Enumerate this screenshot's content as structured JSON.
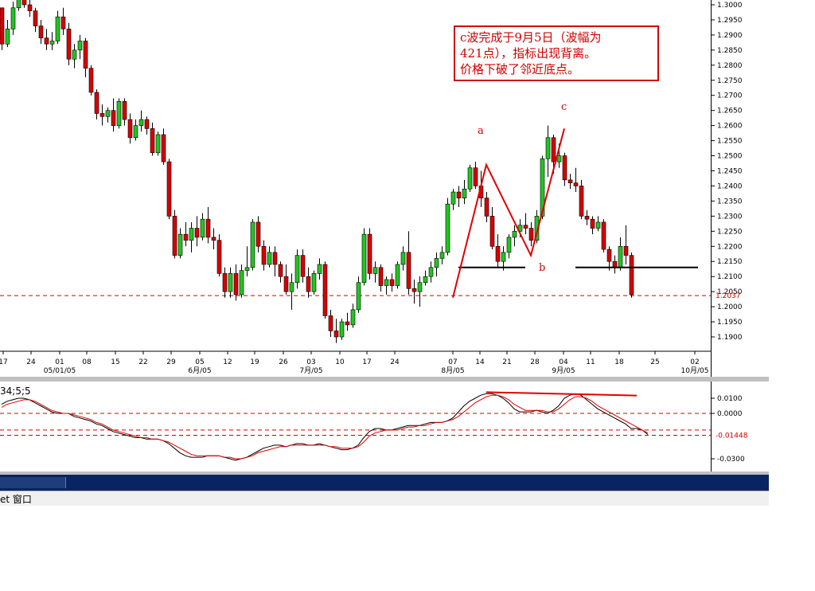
{
  "chart_data": [
    {
      "type": "candlestick",
      "title": "",
      "y_axis_side": "right",
      "ylim": [
        1.186,
        1.3015
      ],
      "y_ticks": [
        "1.3000",
        "1.2950",
        "1.2900",
        "1.2850",
        "1.2800",
        "1.2750",
        "1.2700",
        "1.2650",
        "1.2600",
        "1.2550",
        "1.2500",
        "1.2450",
        "1.2400",
        "1.2350",
        "1.2300",
        "1.2250",
        "1.2200",
        "1.2150",
        "1.2100",
        "1.2050",
        "1.2000",
        "1.1950",
        "1.1900"
      ],
      "current_price_label": "1.2037",
      "current_price": 1.2037,
      "x_day_ticks": [
        "17",
        "24",
        "01",
        "08",
        "15",
        "22",
        "29",
        "05",
        "12",
        "19",
        "26",
        "03",
        "10",
        "17",
        "24",
        "07",
        "14",
        "21",
        "28",
        "04",
        "11",
        "18",
        "25",
        "02"
      ],
      "x_month_ticks": [
        "05/01/05",
        "6月/05",
        "7月/05",
        "8月/05",
        "9月/05",
        "10月/05"
      ],
      "colors": {
        "up": "#22c522",
        "down": "#d80000",
        "grid_dash": "#d00000",
        "wave_line": "#e00000",
        "support_line": "#000000"
      },
      "candles": [
        [
          1.299,
          1.299,
          1.285,
          1.287
        ],
        [
          1.287,
          1.295,
          1.286,
          1.292
        ],
        [
          1.292,
          1.301,
          1.29,
          1.299
        ],
        [
          1.299,
          1.304,
          1.298,
          1.303
        ],
        [
          1.303,
          1.305,
          1.299,
          1.3
        ],
        [
          1.3,
          1.302,
          1.296,
          1.298
        ],
        [
          1.298,
          1.299,
          1.291,
          1.293
        ],
        [
          1.293,
          1.295,
          1.287,
          1.289
        ],
        [
          1.289,
          1.292,
          1.285,
          1.287
        ],
        [
          1.287,
          1.291,
          1.285,
          1.288
        ],
        [
          1.288,
          1.298,
          1.287,
          1.296
        ],
        [
          1.296,
          1.299,
          1.29,
          1.292
        ],
        [
          1.292,
          1.294,
          1.28,
          1.282
        ],
        [
          1.282,
          1.287,
          1.279,
          1.285
        ],
        [
          1.285,
          1.29,
          1.282,
          1.288
        ],
        [
          1.288,
          1.289,
          1.276,
          1.279
        ],
        [
          1.279,
          1.28,
          1.27,
          1.271
        ],
        [
          1.271,
          1.272,
          1.262,
          1.264
        ],
        [
          1.264,
          1.267,
          1.26,
          1.263
        ],
        [
          1.263,
          1.266,
          1.261,
          1.265
        ],
        [
          1.265,
          1.269,
          1.258,
          1.26
        ],
        [
          1.26,
          1.269,
          1.259,
          1.268
        ],
        [
          1.268,
          1.269,
          1.26,
          1.262
        ],
        [
          1.262,
          1.264,
          1.254,
          1.256
        ],
        [
          1.256,
          1.262,
          1.255,
          1.26
        ],
        [
          1.26,
          1.265,
          1.258,
          1.262
        ],
        [
          1.262,
          1.263,
          1.257,
          1.259
        ],
        [
          1.259,
          1.261,
          1.25,
          1.251
        ],
        [
          1.251,
          1.258,
          1.25,
          1.257
        ],
        [
          1.257,
          1.259,
          1.247,
          1.248
        ],
        [
          1.248,
          1.249,
          1.229,
          1.23
        ],
        [
          1.23,
          1.232,
          1.216,
          1.217
        ],
        [
          1.217,
          1.226,
          1.216,
          1.224
        ],
        [
          1.224,
          1.228,
          1.22,
          1.222
        ],
        [
          1.222,
          1.228,
          1.218,
          1.226
        ],
        [
          1.226,
          1.23,
          1.22,
          1.223
        ],
        [
          1.223,
          1.231,
          1.222,
          1.229
        ],
        [
          1.229,
          1.233,
          1.221,
          1.223
        ],
        [
          1.223,
          1.226,
          1.219,
          1.222
        ],
        [
          1.222,
          1.224,
          1.21,
          1.211
        ],
        [
          1.211,
          1.213,
          1.203,
          1.205
        ],
        [
          1.205,
          1.213,
          1.203,
          1.211
        ],
        [
          1.211,
          1.214,
          1.202,
          1.204
        ],
        [
          1.204,
          1.214,
          1.203,
          1.212
        ],
        [
          1.212,
          1.22,
          1.21,
          1.213
        ],
        [
          1.213,
          1.229,
          1.212,
          1.228
        ],
        [
          1.228,
          1.23,
          1.218,
          1.22
        ],
        [
          1.22,
          1.222,
          1.212,
          1.214
        ],
        [
          1.214,
          1.22,
          1.213,
          1.218
        ],
        [
          1.218,
          1.22,
          1.21,
          1.214
        ],
        [
          1.214,
          1.215,
          1.208,
          1.21
        ],
        [
          1.21,
          1.214,
          1.204,
          1.205
        ],
        [
          1.205,
          1.211,
          1.199,
          1.208
        ],
        [
          1.208,
          1.219,
          1.206,
          1.217
        ],
        [
          1.217,
          1.219,
          1.208,
          1.21
        ],
        [
          1.21,
          1.213,
          1.203,
          1.205
        ],
        [
          1.205,
          1.212,
          1.204,
          1.211
        ],
        [
          1.211,
          1.216,
          1.209,
          1.214
        ],
        [
          1.214,
          1.215,
          1.196,
          1.197
        ],
        [
          1.197,
          1.199,
          1.19,
          1.192
        ],
        [
          1.192,
          1.196,
          1.188,
          1.19
        ],
        [
          1.19,
          1.196,
          1.189,
          1.195
        ],
        [
          1.195,
          1.198,
          1.192,
          1.194
        ],
        [
          1.194,
          1.201,
          1.193,
          1.199
        ],
        [
          1.199,
          1.21,
          1.198,
          1.208
        ],
        [
          1.208,
          1.226,
          1.207,
          1.224
        ],
        [
          1.224,
          1.226,
          1.209,
          1.211
        ],
        [
          1.211,
          1.215,
          1.208,
          1.213
        ],
        [
          1.213,
          1.214,
          1.205,
          1.207
        ],
        [
          1.207,
          1.21,
          1.204,
          1.209
        ],
        [
          1.209,
          1.211,
          1.205,
          1.207
        ],
        [
          1.207,
          1.215,
          1.206,
          1.214
        ],
        [
          1.214,
          1.22,
          1.212,
          1.218
        ],
        [
          1.218,
          1.225,
          1.204,
          1.206
        ],
        [
          1.206,
          1.209,
          1.201,
          1.205
        ],
        [
          1.205,
          1.21,
          1.2,
          1.208
        ],
        [
          1.208,
          1.212,
          1.207,
          1.21
        ],
        [
          1.21,
          1.215,
          1.208,
          1.213
        ],
        [
          1.213,
          1.218,
          1.21,
          1.216
        ],
        [
          1.216,
          1.22,
          1.214,
          1.218
        ],
        [
          1.218,
          1.236,
          1.217,
          1.234
        ],
        [
          1.234,
          1.239,
          1.232,
          1.238
        ],
        [
          1.238,
          1.24,
          1.233,
          1.236
        ],
        [
          1.236,
          1.242,
          1.234,
          1.239
        ],
        [
          1.239,
          1.247,
          1.238,
          1.246
        ],
        [
          1.246,
          1.248,
          1.239,
          1.24
        ],
        [
          1.24,
          1.245,
          1.233,
          1.236
        ],
        [
          1.236,
          1.238,
          1.228,
          1.23
        ],
        [
          1.23,
          1.233,
          1.219,
          1.22
        ],
        [
          1.22,
          1.224,
          1.213,
          1.215
        ],
        [
          1.215,
          1.22,
          1.212,
          1.218
        ],
        [
          1.218,
          1.224,
          1.216,
          1.223
        ],
        [
          1.223,
          1.227,
          1.22,
          1.225
        ],
        [
          1.225,
          1.229,
          1.223,
          1.227
        ],
        [
          1.227,
          1.231,
          1.224,
          1.226
        ],
        [
          1.226,
          1.228,
          1.22,
          1.222
        ],
        [
          1.222,
          1.232,
          1.221,
          1.23
        ],
        [
          1.23,
          1.25,
          1.229,
          1.249
        ],
        [
          1.249,
          1.26,
          1.243,
          1.256
        ],
        [
          1.256,
          1.257,
          1.244,
          1.248
        ],
        [
          1.248,
          1.254,
          1.246,
          1.25
        ],
        [
          1.25,
          1.251,
          1.24,
          1.242
        ],
        [
          1.242,
          1.244,
          1.239,
          1.241
        ],
        [
          1.241,
          1.246,
          1.238,
          1.24
        ],
        [
          1.24,
          1.242,
          1.229,
          1.23
        ],
        [
          1.23,
          1.232,
          1.227,
          1.229
        ],
        [
          1.229,
          1.23,
          1.224,
          1.226
        ],
        [
          1.226,
          1.23,
          1.225,
          1.228
        ],
        [
          1.228,
          1.229,
          1.218,
          1.219
        ],
        [
          1.219,
          1.22,
          1.212,
          1.215
        ],
        [
          1.215,
          1.217,
          1.211,
          1.213
        ],
        [
          1.213,
          1.223,
          1.212,
          1.22
        ],
        [
          1.22,
          1.227,
          1.214,
          1.217
        ],
        [
          1.217,
          1.218,
          1.203,
          1.204
        ]
      ],
      "wave_lines": [
        {
          "points": [
            [
              81,
              1.203
            ],
            [
              87,
              1.247
            ],
            [
              95,
              1.217
            ],
            [
              101,
              1.259
            ]
          ]
        }
      ],
      "support_lines": [
        {
          "x_start": 82,
          "x_end": 94,
          "price": 1.213
        },
        {
          "x_start": 103,
          "x_end": 125,
          "price": 1.213
        }
      ],
      "wave_labels": [
        {
          "text": "a",
          "x": 86,
          "price": 1.2565
        },
        {
          "text": "b",
          "x": 97,
          "price": 1.211
        },
        {
          "text": "c",
          "x": 101,
          "price": 1.2645
        }
      ]
    },
    {
      "type": "line",
      "title": "34;5;5",
      "ylim": [
        -0.0335,
        0.0185
      ],
      "y_ticks": [
        "0.0100",
        "0.0000",
        "-0.0300"
      ],
      "level_label": "-0.01448",
      "dashed_levels": [
        0.0,
        -0.011,
        -0.0145
      ],
      "series": [
        {
          "values": [
            0.006,
            0.008,
            0.009,
            0.01,
            0.01,
            0.009,
            0.007,
            0.005,
            0.003,
            0.001,
            0.0,
            0.0,
            0.0,
            -0.002,
            -0.003,
            -0.004,
            -0.005,
            -0.007,
            -0.008,
            -0.01,
            -0.012,
            -0.013,
            -0.014,
            -0.015,
            -0.016,
            -0.016,
            -0.017,
            -0.017,
            -0.017,
            -0.018,
            -0.02,
            -0.023,
            -0.026,
            -0.028,
            -0.029,
            -0.029,
            -0.029,
            -0.028,
            -0.028,
            -0.028,
            -0.029,
            -0.03,
            -0.031,
            -0.03,
            -0.029,
            -0.027,
            -0.025,
            -0.023,
            -0.022,
            -0.021,
            -0.021,
            -0.022,
            -0.021,
            -0.02,
            -0.02,
            -0.021,
            -0.021,
            -0.02,
            -0.021,
            -0.022,
            -0.023,
            -0.024,
            -0.024,
            -0.023,
            -0.021,
            -0.016,
            -0.012,
            -0.01,
            -0.01,
            -0.011,
            -0.011,
            -0.01,
            -0.009,
            -0.008,
            -0.008,
            -0.008,
            -0.007,
            -0.006,
            -0.006,
            -0.006,
            -0.005,
            -0.003,
            0.001,
            0.005,
            0.008,
            0.01,
            0.012,
            0.013,
            0.013,
            0.012,
            0.01,
            0.007,
            0.003,
            0.001,
            0.001,
            0.001,
            0.002,
            0.001,
            0.0,
            0.002,
            0.005,
            0.01,
            0.012,
            0.013,
            0.012,
            0.009,
            0.006,
            0.003,
            0.001,
            -0.001,
            -0.003,
            -0.005,
            -0.007,
            -0.01,
            -0.01,
            -0.011,
            -0.014
          ]
        },
        {
          "values": [
            0.004,
            0.006,
            0.007,
            0.008,
            0.009,
            0.009,
            0.008,
            0.006,
            0.004,
            0.002,
            0.001,
            0.0,
            0.0,
            -0.001,
            -0.002,
            -0.003,
            -0.004,
            -0.006,
            -0.007,
            -0.009,
            -0.011,
            -0.012,
            -0.013,
            -0.014,
            -0.015,
            -0.016,
            -0.016,
            -0.017,
            -0.017,
            -0.018,
            -0.019,
            -0.021,
            -0.023,
            -0.025,
            -0.027,
            -0.028,
            -0.028,
            -0.028,
            -0.028,
            -0.028,
            -0.029,
            -0.029,
            -0.03,
            -0.03,
            -0.029,
            -0.028,
            -0.026,
            -0.025,
            -0.024,
            -0.023,
            -0.022,
            -0.022,
            -0.021,
            -0.021,
            -0.021,
            -0.021,
            -0.021,
            -0.021,
            -0.021,
            -0.022,
            -0.022,
            -0.023,
            -0.023,
            -0.023,
            -0.022,
            -0.019,
            -0.015,
            -0.013,
            -0.012,
            -0.011,
            -0.011,
            -0.011,
            -0.01,
            -0.009,
            -0.009,
            -0.008,
            -0.008,
            -0.007,
            -0.006,
            -0.006,
            -0.005,
            -0.004,
            -0.002,
            0.001,
            0.004,
            0.007,
            0.009,
            0.011,
            0.012,
            0.012,
            0.011,
            0.009,
            0.006,
            0.004,
            0.002,
            0.002,
            0.002,
            0.002,
            0.001,
            0.001,
            0.003,
            0.006,
            0.009,
            0.011,
            0.011,
            0.01,
            0.008,
            0.005,
            0.003,
            0.001,
            -0.001,
            -0.003,
            -0.005,
            -0.007,
            -0.009,
            -0.011,
            -0.013
          ]
        }
      ],
      "divergence_line": {
        "start": [
          87,
          0.014
        ],
        "end": [
          114,
          0.0118
        ]
      }
    }
  ],
  "annotation": {
    "lines": [
      "c波完成于9月5日（波幅为",
      "421点），指标出现背离。",
      "价格下破了邻近底点。"
    ]
  },
  "menu": {
    "label": "et 窗口"
  }
}
